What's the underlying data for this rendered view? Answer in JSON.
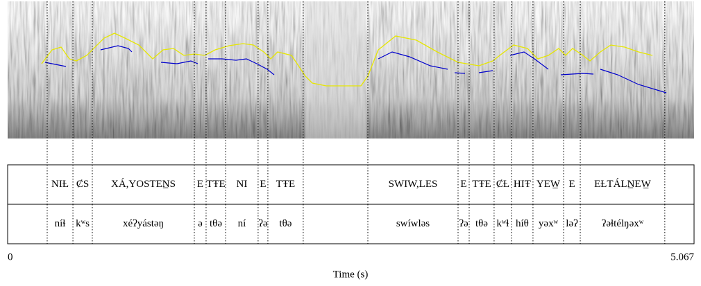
{
  "axis": {
    "label": "Time (s)",
    "start": 0,
    "end": 5.067
  },
  "tiers": [
    {
      "intervals": [
        {
          "start": 0.292,
          "end": 0.482,
          "label": "NIȽ"
        },
        {
          "start": 0.482,
          "end": 0.625,
          "label": "ȻS"
        },
        {
          "start": 0.625,
          "end": 1.378,
          "label": "XÁ,YOSTEN̲S"
        },
        {
          "start": 1.378,
          "end": 1.465,
          "label": "E"
        },
        {
          "start": 1.465,
          "end": 1.609,
          "label": "TŦE"
        },
        {
          "start": 1.609,
          "end": 1.849,
          "label": "NI"
        },
        {
          "start": 1.849,
          "end": 1.921,
          "label": "E"
        },
        {
          "start": 1.921,
          "end": 2.182,
          "label": "TŦE"
        },
        {
          "start": 2.659,
          "end": 3.325,
          "label": "SWIW,LES"
        },
        {
          "start": 3.325,
          "end": 3.407,
          "label": "E"
        },
        {
          "start": 3.407,
          "end": 3.591,
          "label": "TŦE"
        },
        {
          "start": 3.591,
          "end": 3.719,
          "label": "ȻȽ"
        },
        {
          "start": 3.719,
          "end": 3.878,
          "label": "HIŦ"
        },
        {
          "start": 3.878,
          "end": 4.104,
          "label": "YEW̲"
        },
        {
          "start": 4.104,
          "end": 4.227,
          "label": "E"
        },
        {
          "start": 4.227,
          "end": 4.851,
          "label": "EȽTÁLN̲EW̲"
        }
      ]
    },
    {
      "intervals": [
        {
          "start": 0.292,
          "end": 0.482,
          "label": "níɬ"
        },
        {
          "start": 0.482,
          "end": 0.625,
          "label": "kʷs"
        },
        {
          "start": 0.625,
          "end": 1.378,
          "label": "xéʔyástəŋ"
        },
        {
          "start": 1.378,
          "end": 1.465,
          "label": "ə"
        },
        {
          "start": 1.465,
          "end": 1.609,
          "label": "tθə"
        },
        {
          "start": 1.609,
          "end": 1.849,
          "label": "ní"
        },
        {
          "start": 1.849,
          "end": 1.921,
          "label": "ʔə"
        },
        {
          "start": 1.921,
          "end": 2.182,
          "label": "tθə"
        },
        {
          "start": 2.659,
          "end": 3.325,
          "label": "swíwləs"
        },
        {
          "start": 3.325,
          "end": 3.407,
          "label": "ʔə"
        },
        {
          "start": 3.407,
          "end": 3.591,
          "label": "tθə"
        },
        {
          "start": 3.591,
          "end": 3.719,
          "label": "kʷɬ"
        },
        {
          "start": 3.719,
          "end": 3.878,
          "label": "híθ"
        },
        {
          "start": 3.878,
          "end": 4.104,
          "label": "yəxʷ"
        },
        {
          "start": 4.104,
          "end": 4.227,
          "label": "ləʔ"
        },
        {
          "start": 4.227,
          "end": 4.851,
          "label": "ʔəɬtélŋəxʷ"
        }
      ]
    }
  ]
}
